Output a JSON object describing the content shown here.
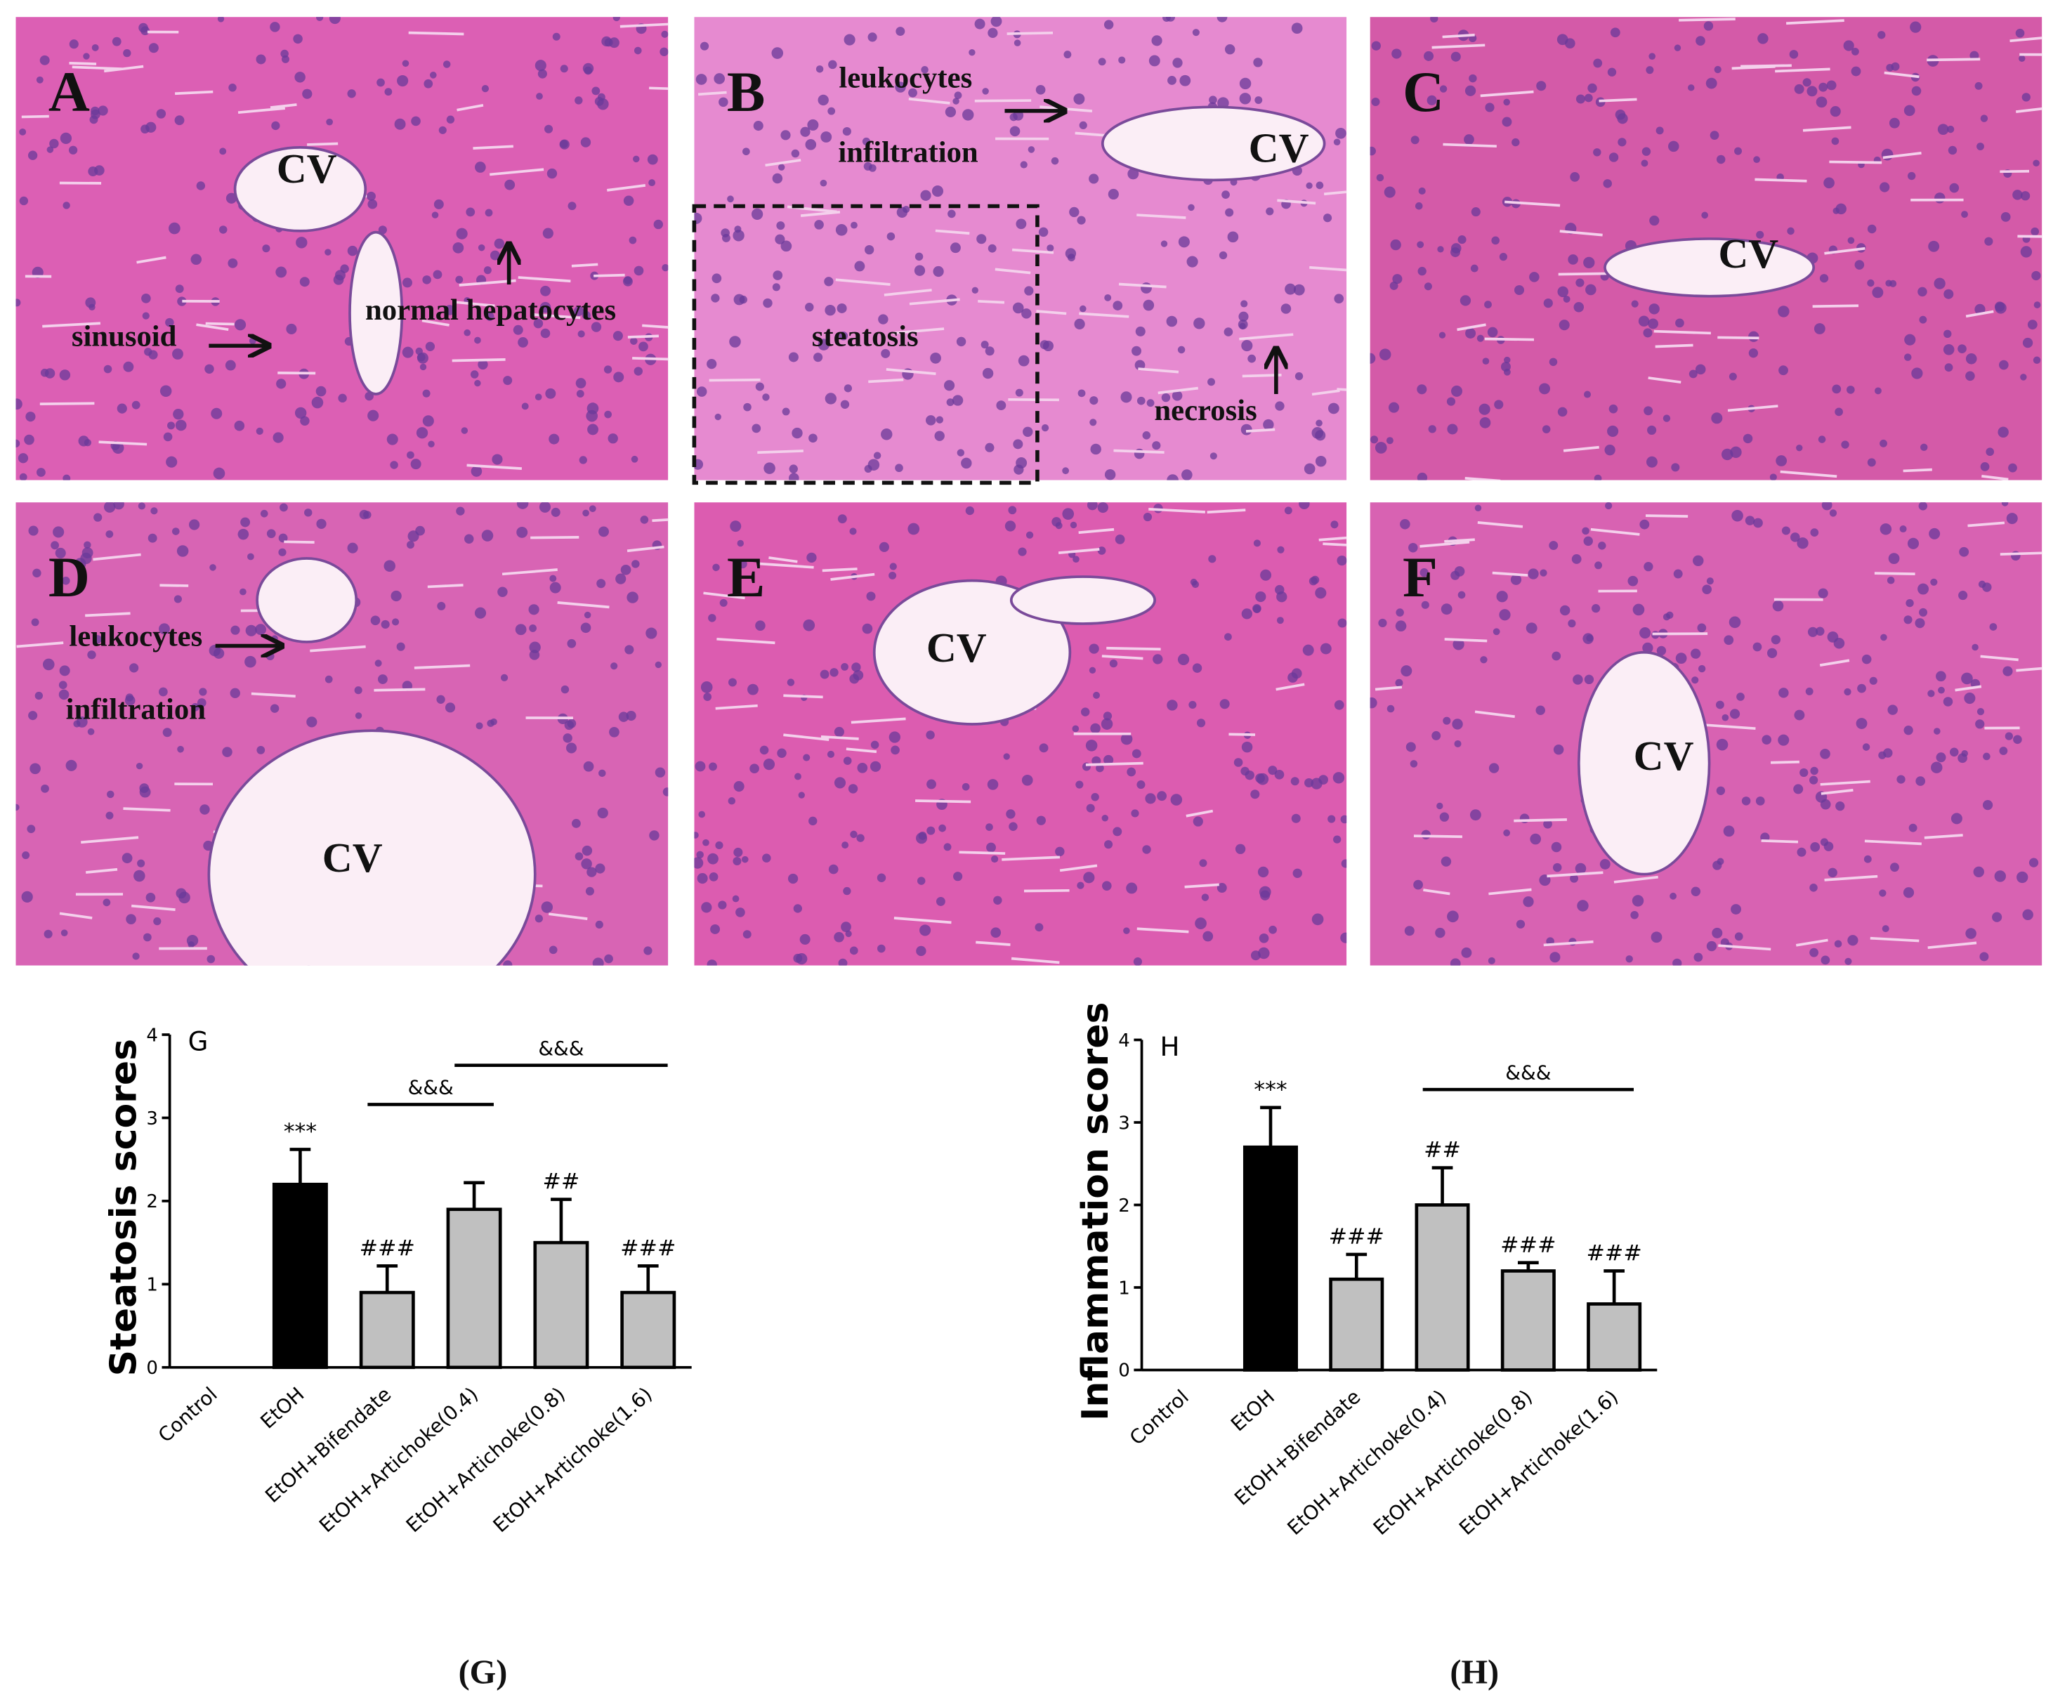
{
  "panels": [
    {
      "letter": "A",
      "labels": [
        "CV",
        "sinusoid",
        "normal hepatocytes"
      ]
    },
    {
      "letter": "B",
      "labels": [
        "leukocytes",
        "infiltration",
        "CV",
        "steatosis",
        "necrosis"
      ]
    },
    {
      "letter": "C",
      "labels": [
        "CV"
      ]
    },
    {
      "letter": "D",
      "labels": [
        "leukocytes",
        "infiltration",
        "CV"
      ]
    },
    {
      "letter": "E",
      "labels": [
        "CV"
      ]
    },
    {
      "letter": "F",
      "labels": [
        "CV"
      ]
    }
  ],
  "chart_data": [
    {
      "type": "bar",
      "panel": "G",
      "caption": "(G)",
      "ylabel": "Steatosis scores",
      "categories": [
        "Control",
        "EtOH",
        "EtOH+Bifendate",
        "EtOH+Artichoke(0.4)",
        "EtOH+Artichoke(0.8)",
        "EtOH+Artichoke(1.6)"
      ],
      "values": [
        0,
        2.2,
        0.9,
        1.9,
        1.5,
        0.9
      ],
      "errors": [
        0,
        0.42,
        0.32,
        0.32,
        0.52,
        0.32
      ],
      "colors": [
        "#c0c0c0",
        "#000000",
        "#c0c0c0",
        "#c0c0c0",
        "#c0c0c0",
        "#c0c0c0"
      ],
      "annotations": [
        null,
        "***",
        "###",
        null,
        "##",
        "###"
      ],
      "brackets": [
        {
          "from": "EtOH+Bifendate",
          "to": "EtOH+Artichoke(0.4)",
          "label": "&&&"
        },
        {
          "from": "EtOH+Artichoke(0.4)",
          "to": "EtOH+Artichoke(1.6)",
          "label": "&&&"
        }
      ],
      "ylim": [
        0,
        4
      ],
      "yticks": [
        0,
        1,
        2,
        3,
        4
      ]
    },
    {
      "type": "bar",
      "panel": "H",
      "caption": "(H)",
      "ylabel": "Inflammation scores",
      "categories": [
        "Control",
        "EtOH",
        "EtOH+Bifendate",
        "EtOH+Artichoke(0.4)",
        "EtOH+Artichoke(0.8)",
        "EtOH+Artichoke(1.6)"
      ],
      "values": [
        0,
        2.7,
        1.1,
        2.0,
        1.2,
        0.8
      ],
      "errors": [
        0,
        0.48,
        0.3,
        0.45,
        0.1,
        0.4
      ],
      "colors": [
        "#c0c0c0",
        "#000000",
        "#c0c0c0",
        "#c0c0c0",
        "#c0c0c0",
        "#c0c0c0"
      ],
      "annotations": [
        null,
        "***",
        "###",
        "##",
        "###",
        "###"
      ],
      "brackets": [
        {
          "from": "EtOH+Artichoke(0.4)",
          "to": "EtOH+Artichoke(1.6)",
          "label": "&&&"
        }
      ],
      "ylim": [
        0,
        4
      ],
      "yticks": [
        0,
        1,
        2,
        3,
        4
      ]
    }
  ]
}
